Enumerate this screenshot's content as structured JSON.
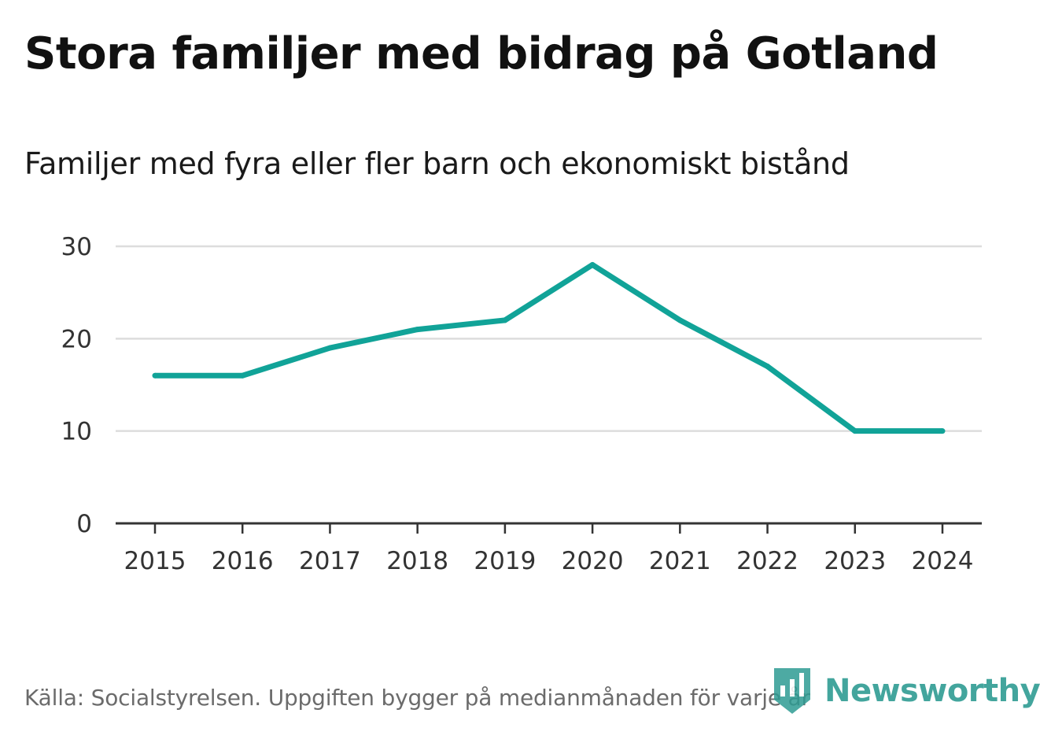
{
  "chart_data": {
    "type": "line",
    "title": "Stora familjer med bidrag på Gotland",
    "subtitle": "Familjer med fyra eller fler barn och ekonomiskt bistånd",
    "xlabel": "",
    "ylabel": "",
    "x": [
      "2015",
      "2016",
      "2017",
      "2018",
      "2019",
      "2020",
      "2021",
      "2022",
      "2023",
      "2024"
    ],
    "series": [
      {
        "name": "Familjer med fyra eller fler barn och ekonomiskt bistånd",
        "values": [
          16,
          16,
          19,
          21,
          22,
          28,
          22,
          17,
          10,
          10
        ],
        "color": "#11a398"
      }
    ],
    "ylim": [
      0,
      30
    ],
    "yticks": [
      "0",
      "10",
      "20",
      "30"
    ],
    "grid": true,
    "legend": "none"
  },
  "footer": {
    "source": "Källa: Socialstyrelsen. Uppgiften bygger på medianmånaden för varje år",
    "brand": "Newsworthy",
    "brand_logo_icon": "newsworthy-logo-icon"
  },
  "colors": {
    "line": "#11a398",
    "grid": "#dddddd",
    "axis": "#333333",
    "tick_text": "#333333",
    "brand": "#2f9c93"
  }
}
